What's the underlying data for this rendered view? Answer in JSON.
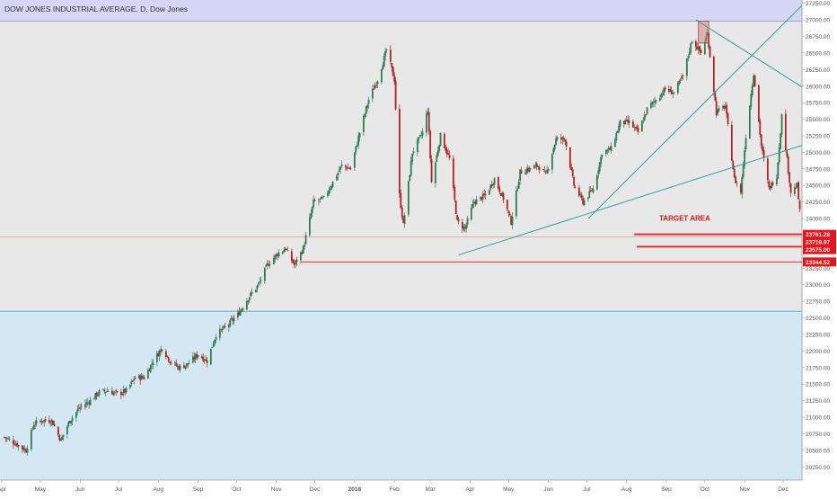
{
  "colors": {
    "bg_zone_top": "#d6d6f6",
    "bg_zone_mid": "#e8e8e8",
    "bg_zone_bottom": "#d4e8f3",
    "up_candle": "#2e7d55",
    "down_candle": "#b22222",
    "trendline": "#2aa198",
    "support_line": "#d93030",
    "target_text": "#d11a1a",
    "price_tag_bg": "#e8141a",
    "axis_text": "#555555",
    "title_text": "#333333"
  },
  "chart_data": {
    "type": "candlestick",
    "title": "DOW JONES INDUSTRIAL AVERAGE, D, Dow Jones",
    "ylim": [
      20050,
      27300
    ],
    "y_ticks": [
      20250,
      20500,
      20750,
      21000,
      21250,
      21500,
      21750,
      22000,
      22250,
      22500,
      22750,
      23000,
      23250,
      23500,
      23750,
      24000,
      24250,
      24500,
      24750,
      25000,
      25250,
      25500,
      25750,
      26000,
      26250,
      26500,
      26750,
      27000,
      27250
    ],
    "y_tick_labels": [
      "20250.00",
      "20500.00",
      "20750.00",
      "21000.00",
      "21250.00",
      "21500.00",
      "21750.00",
      "22000.00",
      "22250.00",
      "22500.00",
      "22750.00",
      "23000.00",
      "23250.00",
      "23500.00",
      "23750.00",
      "24000.00",
      "24250.00",
      "24500.00",
      "24750.00",
      "25000.00",
      "25250.00",
      "25500.00",
      "25750.00",
      "26000.00",
      "26250.00",
      "26500.00",
      "26750.00",
      "27000.00",
      "27250.00"
    ],
    "x_labels": [
      {
        "label": "Apr",
        "date": "2017-04-01"
      },
      {
        "label": "May",
        "date": "2017-05-01"
      },
      {
        "label": "Jun",
        "date": "2017-06-01"
      },
      {
        "label": "Jul",
        "date": "2017-07-01"
      },
      {
        "label": "Aug",
        "date": "2017-08-01"
      },
      {
        "label": "Sep",
        "date": "2017-09-01"
      },
      {
        "label": "Oct",
        "date": "2017-10-01"
      },
      {
        "label": "Nov",
        "date": "2017-11-01"
      },
      {
        "label": "Dec",
        "date": "2017-12-01"
      },
      {
        "label": "2018",
        "date": "2018-01-01"
      },
      {
        "label": "Feb",
        "date": "2018-02-01"
      },
      {
        "label": "Mar",
        "date": "2018-03-01"
      },
      {
        "label": "Apr",
        "date": "2018-04-01"
      },
      {
        "label": "May",
        "date": "2018-05-01"
      },
      {
        "label": "Jun",
        "date": "2018-06-01"
      },
      {
        "label": "Jul",
        "date": "2018-07-01"
      },
      {
        "label": "Aug",
        "date": "2018-08-01"
      },
      {
        "label": "Sep",
        "date": "2018-09-01"
      },
      {
        "label": "Oct",
        "date": "2018-10-01"
      },
      {
        "label": "Nov",
        "date": "2018-11-01"
      },
      {
        "label": "Dec",
        "date": "2018-12-01"
      }
    ],
    "zones": [
      {
        "color": "#d6d6f6",
        "from": 26980,
        "to": 27300
      },
      {
        "color": "#e8e8e8",
        "from": 22600,
        "to": 26980
      },
      {
        "color": "#d4e8f3",
        "from": 20050,
        "to": 22600
      }
    ],
    "closes": [
      {
        "date": "2017-04-03",
        "close": 20700
      },
      {
        "date": "2017-04-12",
        "close": 20600
      },
      {
        "date": "2017-04-20",
        "close": 20500
      },
      {
        "date": "2017-04-26",
        "close": 20900
      },
      {
        "date": "2017-05-02",
        "close": 20950
      },
      {
        "date": "2017-05-10",
        "close": 20950
      },
      {
        "date": "2017-05-17",
        "close": 20650
      },
      {
        "date": "2017-05-24",
        "close": 20950
      },
      {
        "date": "2017-06-01",
        "close": 21150
      },
      {
        "date": "2017-06-09",
        "close": 21250
      },
      {
        "date": "2017-06-16",
        "close": 21380
      },
      {
        "date": "2017-06-23",
        "close": 21400
      },
      {
        "date": "2017-06-30",
        "close": 21350
      },
      {
        "date": "2017-07-07",
        "close": 21400
      },
      {
        "date": "2017-07-14",
        "close": 21600
      },
      {
        "date": "2017-07-21",
        "close": 21600
      },
      {
        "date": "2017-07-28",
        "close": 21850
      },
      {
        "date": "2017-08-04",
        "close": 22050
      },
      {
        "date": "2017-08-10",
        "close": 21850
      },
      {
        "date": "2017-08-17",
        "close": 21750
      },
      {
        "date": "2017-08-24",
        "close": 21800
      },
      {
        "date": "2017-09-01",
        "close": 21950
      },
      {
        "date": "2017-09-08",
        "close": 21850
      },
      {
        "date": "2017-09-15",
        "close": 22250
      },
      {
        "date": "2017-09-22",
        "close": 22350
      },
      {
        "date": "2017-10-02",
        "close": 22550
      },
      {
        "date": "2017-10-10",
        "close": 22800
      },
      {
        "date": "2017-10-18",
        "close": 23000
      },
      {
        "date": "2017-10-25",
        "close": 23300
      },
      {
        "date": "2017-11-01",
        "close": 23450
      },
      {
        "date": "2017-11-08",
        "close": 23550
      },
      {
        "date": "2017-11-15",
        "close": 23300
      },
      {
        "date": "2017-11-22",
        "close": 23550
      },
      {
        "date": "2017-11-30",
        "close": 24250
      },
      {
        "date": "2017-12-08",
        "close": 24300
      },
      {
        "date": "2017-12-15",
        "close": 24550
      },
      {
        "date": "2017-12-22",
        "close": 24800
      },
      {
        "date": "2017-12-29",
        "close": 24750
      },
      {
        "date": "2018-01-05",
        "close": 25300
      },
      {
        "date": "2018-01-12",
        "close": 25800
      },
      {
        "date": "2018-01-19",
        "close": 26100
      },
      {
        "date": "2018-01-26",
        "close": 26550
      },
      {
        "date": "2018-02-01",
        "close": 26100
      },
      {
        "date": "2018-02-05",
        "close": 24350
      },
      {
        "date": "2018-02-08",
        "close": 23900
      },
      {
        "date": "2018-02-15",
        "close": 25000
      },
      {
        "date": "2018-02-23",
        "close": 25300
      },
      {
        "date": "2018-02-27",
        "close": 25650
      },
      {
        "date": "2018-03-02",
        "close": 24550
      },
      {
        "date": "2018-03-09",
        "close": 25250
      },
      {
        "date": "2018-03-16",
        "close": 24900
      },
      {
        "date": "2018-03-22",
        "close": 23950
      },
      {
        "date": "2018-03-28",
        "close": 23850
      },
      {
        "date": "2018-04-04",
        "close": 24250
      },
      {
        "date": "2018-04-13",
        "close": 24350
      },
      {
        "date": "2018-04-20",
        "close": 24600
      },
      {
        "date": "2018-04-27",
        "close": 24300
      },
      {
        "date": "2018-05-03",
        "close": 23950
      },
      {
        "date": "2018-05-10",
        "close": 24700
      },
      {
        "date": "2018-05-17",
        "close": 24750
      },
      {
        "date": "2018-05-24",
        "close": 24800
      },
      {
        "date": "2018-05-30",
        "close": 24650
      },
      {
        "date": "2018-06-07",
        "close": 25200
      },
      {
        "date": "2018-06-14",
        "close": 25200
      },
      {
        "date": "2018-06-21",
        "close": 24500
      },
      {
        "date": "2018-06-28",
        "close": 24250
      },
      {
        "date": "2018-07-06",
        "close": 24450
      },
      {
        "date": "2018-07-13",
        "close": 25000
      },
      {
        "date": "2018-07-20",
        "close": 25050
      },
      {
        "date": "2018-07-27",
        "close": 25450
      },
      {
        "date": "2018-08-03",
        "close": 25450
      },
      {
        "date": "2018-08-10",
        "close": 25300
      },
      {
        "date": "2018-08-17",
        "close": 25650
      },
      {
        "date": "2018-08-24",
        "close": 25800
      },
      {
        "date": "2018-08-31",
        "close": 25950
      },
      {
        "date": "2018-09-07",
        "close": 25900
      },
      {
        "date": "2018-09-14",
        "close": 26150
      },
      {
        "date": "2018-09-21",
        "close": 26700
      },
      {
        "date": "2018-09-28",
        "close": 26500
      },
      {
        "date": "2018-10-03",
        "close": 26800
      },
      {
        "date": "2018-10-10",
        "close": 25600
      },
      {
        "date": "2018-10-17",
        "close": 25700
      },
      {
        "date": "2018-10-24",
        "close": 24600
      },
      {
        "date": "2018-10-29",
        "close": 24400
      },
      {
        "date": "2018-11-02",
        "close": 25250
      },
      {
        "date": "2018-11-08",
        "close": 26200
      },
      {
        "date": "2018-11-14",
        "close": 25100
      },
      {
        "date": "2018-11-20",
        "close": 24450
      },
      {
        "date": "2018-11-26",
        "close": 24650
      },
      {
        "date": "2018-11-30",
        "close": 25550
      },
      {
        "date": "2018-12-04",
        "close": 24900
      },
      {
        "date": "2018-12-07",
        "close": 24400
      },
      {
        "date": "2018-12-12",
        "close": 24500
      },
      {
        "date": "2018-12-14",
        "close": 24100
      },
      {
        "date": "2018-12-17",
        "close": 23600
      }
    ],
    "highlight_box": {
      "date_from": "2018-09-26",
      "date_to": "2018-10-04",
      "low": 26650,
      "high": 26980
    },
    "trendlines": [
      {
        "from": {
          "date": "2018-03-23",
          "price": 23450
        },
        "to": {
          "date": "2018-12-31",
          "price": 25200
        }
      },
      {
        "from": {
          "date": "2018-07-02",
          "price": 24000
        },
        "to": {
          "date": "2018-12-20",
          "price": 27300
        }
      },
      {
        "from": {
          "date": "2018-09-24",
          "price": 27000
        },
        "to": {
          "date": "2018-12-31",
          "price": 25800
        }
      }
    ],
    "support_lines": [
      {
        "from_date": "2017-11-20",
        "to_date": "2018-12-31",
        "price": 23344.52,
        "width": 1
      },
      {
        "from_date": "2018-08-07",
        "to_date": "2018-12-31",
        "price": 23761.28,
        "width": 2
      },
      {
        "from_date": "2018-08-09",
        "to_date": "2018-12-31",
        "price": 23575.0,
        "width": 2
      }
    ],
    "faint_line_price": 23719.97,
    "annotation": {
      "text": "TARGET AREA",
      "date": "2018-09-01",
      "price": 23970
    },
    "price_tags": [
      {
        "label": "23761.28",
        "price": 23761.28
      },
      {
        "label": "23719.97",
        "price": 23645
      },
      {
        "label": "23575.00",
        "price": 23530
      },
      {
        "label": "23344.52",
        "price": 23344.52
      }
    ]
  }
}
